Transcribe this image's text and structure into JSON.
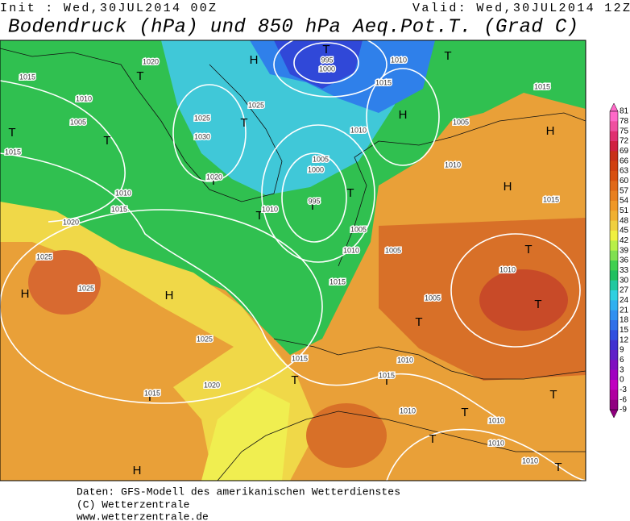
{
  "header": {
    "init": "Init : Wed,30JUL2014 00Z",
    "valid": "Valid: Wed,30JUL2014 12Z",
    "title": "Bodendruck (hPa) und 850 hPa Aeq.Pot.T. (Grad C)"
  },
  "colorbar": {
    "labels": [
      81,
      78,
      75,
      72,
      69,
      66,
      63,
      60,
      57,
      54,
      51,
      48,
      45,
      42,
      39,
      36,
      33,
      30,
      27,
      24,
      21,
      18,
      15,
      12,
      9,
      6,
      3,
      0,
      -3,
      -6,
      -9
    ],
    "colors": [
      "#ff69c8",
      "#f050a0",
      "#e03070",
      "#d02040",
      "#c83018",
      "#d04010",
      "#d85010",
      "#e06818",
      "#e88020",
      "#f09828",
      "#f0b030",
      "#f0d040",
      "#f0f040",
      "#b8f048",
      "#80e050",
      "#40d050",
      "#20c060",
      "#20c8a0",
      "#30d0e0",
      "#30b0f0",
      "#3090f0",
      "#3070e8",
      "#3050e0",
      "#4030d0",
      "#6020c8",
      "#8010c0",
      "#a000c0",
      "#c000c0",
      "#b000a0",
      "#900080"
    ]
  },
  "pressure_centers": [
    "H",
    "H",
    "H",
    "H",
    "H",
    "H",
    "H",
    "T",
    "T",
    "T",
    "T",
    "T",
    "T",
    "T",
    "T",
    "T",
    "T",
    "T",
    "T",
    "T",
    "T",
    "T",
    "T",
    "T",
    "T",
    "T",
    "T"
  ],
  "isobar_labels": [
    "995",
    "1000",
    "1010",
    "1015",
    "1020",
    "1015",
    "1010",
    "1005",
    "1015",
    "1010",
    "1015",
    "1020",
    "1025",
    "1025",
    "1025",
    "1020",
    "1015",
    "1025",
    "1025",
    "1030",
    "1020",
    "1010",
    "1005",
    "1000",
    "995",
    "1010",
    "1010",
    "1005",
    "1015",
    "1015",
    "1005",
    "1010",
    "1005",
    "1015",
    "1005",
    "1010",
    "1015",
    "1010",
    "1015",
    "1010",
    "1010",
    "1010",
    "1010"
  ],
  "footer": [
    "Daten: GFS-Modell des amerikanischen Wetterdienstes",
    "(C) Wetterzentrale",
    "www.wetterzentrale.de"
  ]
}
